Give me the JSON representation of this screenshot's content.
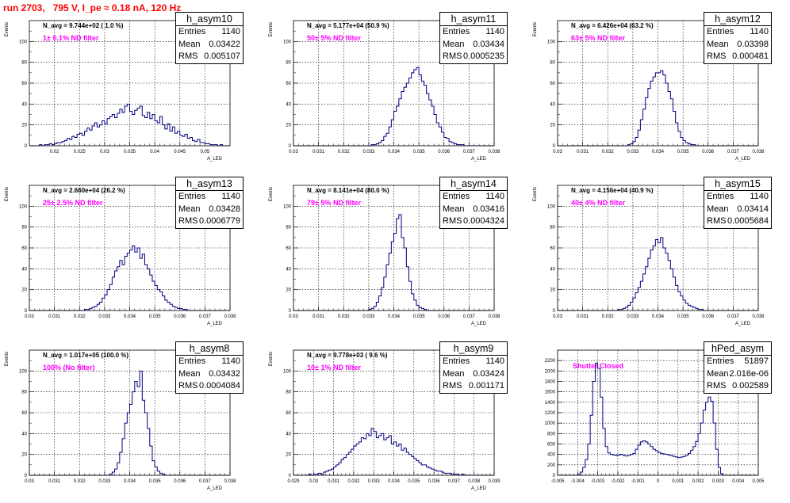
{
  "run_title": "run 2703,   795 V, I_pe ≈ 0.18 nA, 120 Hz",
  "stat_labels": {
    "entries": "Entries",
    "mean": "Mean",
    "rms": "RMS"
  },
  "colors": {
    "hist": "#000080",
    "filter_text": "#ff00ff",
    "title_text": "#ff0000"
  },
  "chart_data": [
    {
      "type": "bar",
      "name": "h_asym10",
      "ylabel": "Events",
      "xlabel": "A_LED",
      "n_avg_label": "N_avg = 9.744e+02 ( 1.0 %)",
      "filter_label": "1± 0.1% ND filter",
      "stats": {
        "entries": "1140",
        "mean": "0.03422",
        "rms": "0.005107"
      },
      "xlim": [
        0.015,
        0.055
      ],
      "ylim": [
        0,
        120
      ],
      "xticks": [
        0.02,
        0.025,
        0.03,
        0.035,
        0.04,
        0.045,
        0.05
      ],
      "xtick_labels": [
        "0.02",
        "0.025",
        "0.03",
        "0.035",
        "0.04",
        "0.045",
        "0.05"
      ],
      "yticks": [
        0,
        20,
        40,
        60,
        80,
        100
      ],
      "yticks_minor": [
        10,
        30,
        50,
        70,
        90,
        110
      ],
      "ytick_labels": [
        "0",
        "20",
        "40",
        "60",
        "80",
        "100"
      ],
      "bin_start": 0.015,
      "bin_width": 0.0005,
      "values": [
        0,
        0,
        0,
        0,
        1,
        0,
        1,
        1,
        2,
        1,
        2,
        3,
        3,
        4,
        5,
        7,
        6,
        9,
        8,
        11,
        12,
        10,
        14,
        17,
        15,
        19,
        22,
        18,
        20,
        24,
        21,
        26,
        28,
        30,
        27,
        31,
        35,
        32,
        38,
        40,
        33,
        30,
        34,
        36,
        38,
        29,
        27,
        32,
        26,
        30,
        24,
        22,
        28,
        20,
        16,
        21,
        14,
        18,
        12,
        14,
        10,
        9,
        11,
        7,
        8,
        5,
        4,
        6,
        3,
        3,
        2,
        2,
        1,
        1,
        1,
        0,
        1,
        0,
        0,
        0
      ]
    },
    {
      "type": "bar",
      "name": "h_asym11",
      "ylabel": "Events",
      "xlabel": "A_LED",
      "n_avg_label": "N_avg = 5.177e+04 (50.9 %)",
      "filter_label": "50± 5% ND filter",
      "stats": {
        "entries": "1140",
        "mean": "0.03434",
        "rms": "0.0005235"
      },
      "xlim": [
        0.03,
        0.038
      ],
      "ylim": [
        0,
        120
      ],
      "xticks": [
        0.03,
        0.031,
        0.032,
        0.033,
        0.034,
        0.035,
        0.036,
        0.037,
        0.038
      ],
      "xtick_labels": [
        "0.03",
        "0.031",
        "0.032",
        "0.033",
        "0.034",
        "0.035",
        "0.036",
        "0.037",
        "0.038"
      ],
      "yticks": [
        0,
        20,
        40,
        60,
        80,
        100
      ],
      "yticks_minor": [
        10,
        30,
        50,
        70,
        90,
        110
      ],
      "ytick_labels": [
        "0",
        "20",
        "40",
        "60",
        "80",
        "100"
      ],
      "bin_start": 0.03,
      "bin_width": 0.0001,
      "values": [
        0,
        0,
        0,
        0,
        0,
        0,
        0,
        0,
        0,
        0,
        0,
        0,
        0,
        0,
        0,
        0,
        0,
        0,
        0,
        0,
        0,
        0,
        0,
        0,
        0,
        0,
        0,
        0,
        0,
        0,
        0,
        1,
        1,
        2,
        3,
        5,
        9,
        12,
        18,
        25,
        33,
        38,
        45,
        52,
        56,
        60,
        65,
        70,
        73,
        75,
        68,
        62,
        58,
        50,
        44,
        38,
        30,
        22,
        18,
        13,
        8,
        7,
        4,
        3,
        2,
        1,
        1,
        1,
        0,
        0,
        0,
        0,
        0,
        0,
        0,
        0,
        0,
        0,
        0,
        0
      ]
    },
    {
      "type": "bar",
      "name": "h_asym12",
      "ylabel": "Events",
      "xlabel": "A_LED",
      "n_avg_label": "N_avg = 6.426e+04 (63.2 %)",
      "filter_label": "63± 5% ND filter",
      "stats": {
        "entries": "1140",
        "mean": "0.03398",
        "rms": "0.000481"
      },
      "xlim": [
        0.03,
        0.038
      ],
      "ylim": [
        0,
        120
      ],
      "xticks": [
        0.03,
        0.031,
        0.032,
        0.033,
        0.034,
        0.035,
        0.036,
        0.037,
        0.038
      ],
      "xtick_labels": [
        "0.03",
        "0.031",
        "0.032",
        "0.033",
        "0.034",
        "0.035",
        "0.036",
        "0.037",
        "0.038"
      ],
      "yticks": [
        0,
        20,
        40,
        60,
        80,
        100
      ],
      "yticks_minor": [
        10,
        30,
        50,
        70,
        90,
        110
      ],
      "ytick_labels": [
        "0",
        "20",
        "40",
        "60",
        "80",
        "100"
      ],
      "bin_start": 0.03,
      "bin_width": 0.0001,
      "values": [
        0,
        0,
        0,
        0,
        0,
        0,
        0,
        0,
        0,
        0,
        0,
        0,
        0,
        0,
        0,
        0,
        0,
        0,
        0,
        0,
        0,
        0,
        0,
        0,
        0,
        0,
        0,
        0,
        1,
        2,
        4,
        8,
        15,
        25,
        35,
        46,
        55,
        62,
        66,
        70,
        70,
        72,
        68,
        60,
        52,
        45,
        33,
        22,
        14,
        8,
        5,
        3,
        2,
        1,
        1,
        0,
        0,
        0,
        0,
        0,
        0,
        0,
        0,
        0,
        0,
        0,
        0,
        0,
        0,
        0,
        0,
        0,
        0,
        0,
        0,
        0,
        0,
        0,
        0,
        0
      ]
    },
    {
      "type": "bar",
      "name": "h_asym13",
      "ylabel": "Events",
      "xlabel": "A_LED",
      "n_avg_label": "N_avg = 2.660e+04 (26.2 %)",
      "filter_label": "25± 2.5% ND filter",
      "stats": {
        "entries": "1140",
        "mean": "0.03428",
        "rms": "0.0006779"
      },
      "xlim": [
        0.03,
        0.038
      ],
      "ylim": [
        0,
        120
      ],
      "xticks": [
        0.03,
        0.031,
        0.032,
        0.033,
        0.034,
        0.035,
        0.036,
        0.037,
        0.038
      ],
      "xtick_labels": [
        "0.03",
        "0.031",
        "0.032",
        "0.033",
        "0.034",
        "0.035",
        "0.036",
        "0.037",
        "0.038"
      ],
      "yticks": [
        0,
        20,
        40,
        60,
        80,
        100
      ],
      "yticks_minor": [
        10,
        30,
        50,
        70,
        90,
        110
      ],
      "ytick_labels": [
        "0",
        "20",
        "40",
        "60",
        "80",
        "100"
      ],
      "bin_start": 0.03,
      "bin_width": 0.0001,
      "values": [
        0,
        0,
        0,
        0,
        0,
        0,
        0,
        0,
        0,
        0,
        0,
        0,
        0,
        0,
        0,
        0,
        0,
        0,
        0,
        0,
        0,
        0,
        1,
        1,
        2,
        3,
        4,
        6,
        8,
        12,
        15,
        20,
        25,
        32,
        38,
        42,
        48,
        44,
        52,
        55,
        58,
        62,
        56,
        60,
        50,
        54,
        44,
        40,
        34,
        28,
        24,
        20,
        18,
        14,
        10,
        8,
        6,
        4,
        3,
        2,
        2,
        1,
        1,
        0,
        0,
        0,
        0,
        0,
        0,
        0,
        0,
        0,
        0,
        0,
        0,
        0,
        0,
        0,
        0,
        0
      ]
    },
    {
      "type": "bar",
      "name": "h_asym14",
      "ylabel": "Events",
      "xlabel": "A_LED",
      "n_avg_label": "N_avg = 8.141e+04 (80.0 %)",
      "filter_label": "79± 5% ND filter",
      "stats": {
        "entries": "1140",
        "mean": "0.03416",
        "rms": "0.0004324"
      },
      "xlim": [
        0.03,
        0.038
      ],
      "ylim": [
        0,
        120
      ],
      "xticks": [
        0.03,
        0.031,
        0.032,
        0.033,
        0.034,
        0.035,
        0.036,
        0.037,
        0.038
      ],
      "xtick_labels": [
        "0.03",
        "0.031",
        "0.032",
        "0.033",
        "0.034",
        "0.035",
        "0.036",
        "0.037",
        "0.038"
      ],
      "yticks": [
        0,
        20,
        40,
        60,
        80,
        100
      ],
      "yticks_minor": [
        10,
        30,
        50,
        70,
        90,
        110
      ],
      "ytick_labels": [
        "0",
        "20",
        "40",
        "60",
        "80",
        "100"
      ],
      "bin_start": 0.03,
      "bin_width": 0.0001,
      "values": [
        0,
        0,
        0,
        0,
        0,
        0,
        0,
        0,
        0,
        0,
        0,
        0,
        0,
        0,
        0,
        0,
        0,
        0,
        0,
        0,
        0,
        0,
        0,
        0,
        0,
        0,
        0,
        0,
        0,
        0,
        1,
        2,
        4,
        8,
        14,
        22,
        32,
        44,
        55,
        66,
        74,
        88,
        92,
        70,
        60,
        42,
        28,
        16,
        10,
        5,
        3,
        2,
        1,
        0,
        0,
        0,
        0,
        0,
        0,
        0,
        0,
        0,
        0,
        0,
        0,
        0,
        0,
        0,
        0,
        0,
        0,
        0,
        0,
        0,
        0,
        0,
        0,
        0,
        0,
        0
      ]
    },
    {
      "type": "bar",
      "name": "h_asym15",
      "ylabel": "Events",
      "xlabel": "A_LED",
      "n_avg_label": "N_avg = 4.156e+04 (40.9 %)",
      "filter_label": "40± 4% ND filter",
      "stats": {
        "entries": "1140",
        "mean": "0.03414",
        "rms": "0.0005684"
      },
      "xlim": [
        0.03,
        0.038
      ],
      "ylim": [
        0,
        120
      ],
      "xticks": [
        0.03,
        0.031,
        0.032,
        0.033,
        0.034,
        0.035,
        0.036,
        0.037,
        0.038
      ],
      "xtick_labels": [
        "0.03",
        "0.031",
        "0.032",
        "0.033",
        "0.034",
        "0.035",
        "0.036",
        "0.037",
        "0.038"
      ],
      "yticks": [
        0,
        20,
        40,
        60,
        80,
        100
      ],
      "yticks_minor": [
        10,
        30,
        50,
        70,
        90,
        110
      ],
      "ytick_labels": [
        "0",
        "20",
        "40",
        "60",
        "80",
        "100"
      ],
      "bin_start": 0.03,
      "bin_width": 0.0001,
      "values": [
        0,
        0,
        0,
        0,
        0,
        0,
        0,
        0,
        0,
        0,
        0,
        0,
        0,
        0,
        0,
        0,
        0,
        0,
        0,
        0,
        0,
        0,
        0,
        0,
        1,
        1,
        2,
        3,
        5,
        8,
        12,
        17,
        22,
        28,
        35,
        42,
        50,
        58,
        62,
        68,
        65,
        70,
        60,
        55,
        48,
        40,
        32,
        24,
        18,
        14,
        10,
        7,
        5,
        4,
        3,
        2,
        1,
        1,
        0,
        0,
        0,
        0,
        0,
        0,
        0,
        0,
        0,
        0,
        0,
        0,
        0,
        0,
        0,
        0,
        0,
        0,
        0,
        0,
        0,
        0
      ]
    },
    {
      "type": "bar",
      "name": "h_asym8",
      "ylabel": "Events",
      "xlabel": "A_LED",
      "n_avg_label": "N_avg = 1.017e+05 (100.0 %)",
      "filter_label": "100% (No filter)",
      "stats": {
        "entries": "1140",
        "mean": "0.03432",
        "rms": "0.0004084"
      },
      "xlim": [
        0.03,
        0.038
      ],
      "ylim": [
        0,
        120
      ],
      "xticks": [
        0.03,
        0.031,
        0.032,
        0.033,
        0.034,
        0.035,
        0.036,
        0.037,
        0.038
      ],
      "xtick_labels": [
        "0.03",
        "0.031",
        "0.032",
        "0.033",
        "0.034",
        "0.035",
        "0.036",
        "0.037",
        "0.038"
      ],
      "yticks": [
        0,
        20,
        40,
        60,
        80,
        100
      ],
      "yticks_minor": [
        10,
        30,
        50,
        70,
        90,
        110
      ],
      "ytick_labels": [
        "0",
        "20",
        "40",
        "60",
        "80",
        "100"
      ],
      "bin_start": 0.03,
      "bin_width": 0.0001,
      "values": [
        0,
        0,
        0,
        0,
        0,
        0,
        0,
        0,
        0,
        0,
        0,
        0,
        0,
        0,
        0,
        0,
        0,
        0,
        0,
        0,
        0,
        0,
        0,
        0,
        0,
        0,
        0,
        0,
        0,
        0,
        0,
        0,
        1,
        3,
        6,
        12,
        22,
        35,
        50,
        60,
        68,
        80,
        90,
        85,
        100,
        72,
        60,
        45,
        28,
        14,
        8,
        4,
        2,
        1,
        0,
        0,
        0,
        0,
        0,
        0,
        0,
        0,
        0,
        0,
        0,
        0,
        0,
        0,
        0,
        0,
        0,
        0,
        0,
        0,
        0,
        0,
        0,
        0,
        0,
        0
      ]
    },
    {
      "type": "bar",
      "name": "h_asym9",
      "ylabel": "Events",
      "xlabel": "A_LED",
      "n_avg_label": "N_avg = 9.778e+03 ( 9.6 %)",
      "filter_label": "10± 1% ND filter",
      "stats": {
        "entries": "1140",
        "mean": "0.03424",
        "rms": "0.001171"
      },
      "xlim": [
        0.029,
        0.039
      ],
      "ylim": [
        0,
        120
      ],
      "xticks": [
        0.029,
        0.03,
        0.031,
        0.032,
        0.033,
        0.034,
        0.035,
        0.036,
        0.037,
        0.038,
        0.039
      ],
      "xtick_labels": [
        "0.029",
        "0.03",
        "0.031",
        "0.032",
        "0.033",
        "0.034",
        "0.035",
        "0.036",
        "0.037",
        "0.038",
        "0.039"
      ],
      "yticks": [
        0,
        20,
        40,
        60,
        80,
        100
      ],
      "yticks_minor": [
        10,
        30,
        50,
        70,
        90,
        110
      ],
      "ytick_labels": [
        "0",
        "20",
        "40",
        "60",
        "80",
        "100"
      ],
      "bin_start": 0.029,
      "bin_width": 0.000125,
      "values": [
        0,
        0,
        0,
        0,
        0,
        0,
        1,
        0,
        1,
        1,
        2,
        1,
        3,
        4,
        5,
        6,
        8,
        10,
        12,
        15,
        17,
        20,
        22,
        25,
        28,
        30,
        32,
        36,
        35,
        40,
        38,
        45,
        42,
        36,
        38,
        40,
        34,
        36,
        38,
        30,
        32,
        28,
        30,
        24,
        26,
        22,
        20,
        18,
        16,
        14,
        12,
        10,
        10,
        8,
        7,
        6,
        5,
        4,
        4,
        3,
        2,
        2,
        2,
        1,
        1,
        1,
        0,
        1,
        0,
        0,
        0,
        0,
        0,
        0,
        0,
        0,
        0,
        0,
        0,
        0
      ]
    },
    {
      "type": "bar",
      "name": "hPed_asym",
      "ylabel": "",
      "xlabel": "",
      "n_avg_label": "",
      "filter_label": "Shutter Closed",
      "stats": {
        "entries": "51897",
        "mean": "2.016e-06",
        "rms": "0.002589"
      },
      "xlim": [
        -0.005,
        0.005
      ],
      "ylim": [
        0,
        2400
      ],
      "xticks": [
        -0.005,
        -0.004,
        -0.003,
        -0.002,
        -0.001,
        0,
        0.001,
        0.002,
        0.003,
        0.004,
        0.005
      ],
      "xtick_labels": [
        "-0.005",
        "-0.004",
        "-0.003",
        "-0.002",
        "-0.001",
        "0",
        "0.001",
        "0.002",
        "0.003",
        "0.004",
        "0.005"
      ],
      "yticks": [
        0,
        200,
        400,
        600,
        800,
        1000,
        1200,
        1400,
        1600,
        1800,
        2000,
        2200
      ],
      "yticks_minor": [],
      "ytick_labels": [
        "0",
        "200",
        "400",
        "600",
        "800",
        "1000",
        "1200",
        "1400",
        "1600",
        "1800",
        "2000",
        "2200"
      ],
      "bin_start": -0.005,
      "bin_width": 0.000125,
      "values": [
        0,
        0,
        0,
        0,
        0,
        0,
        0,
        0,
        20,
        60,
        150,
        300,
        600,
        1150,
        1800,
        2150,
        2050,
        1500,
        900,
        550,
        430,
        400,
        390,
        380,
        390,
        400,
        380,
        370,
        380,
        400,
        420,
        500,
        580,
        640,
        660,
        640,
        600,
        550,
        500,
        470,
        440,
        420,
        410,
        400,
        390,
        380,
        360,
        350,
        340,
        350,
        360,
        380,
        420,
        480,
        550,
        650,
        800,
        1000,
        1250,
        1400,
        1500,
        1420,
        1000,
        500,
        150,
        30,
        0,
        0,
        0,
        0,
        0,
        0,
        0,
        0,
        0,
        0,
        0,
        0,
        0,
        0
      ]
    }
  ]
}
